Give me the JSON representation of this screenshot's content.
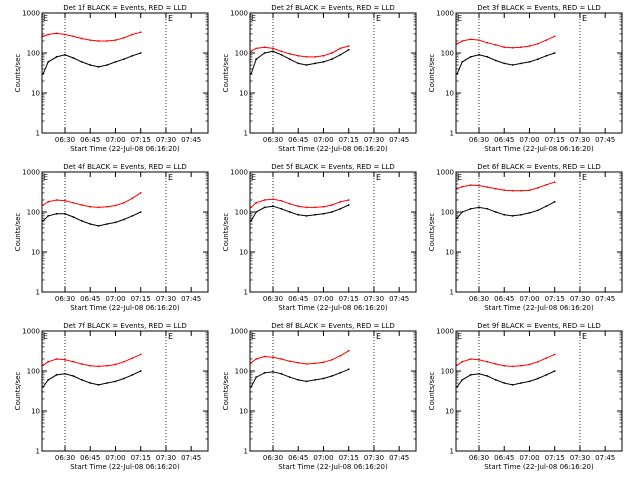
{
  "common": {
    "ylabel": "Counts/sec",
    "xlabel": "Start Time (22-Jul-08 06:16:20)",
    "y_ticks": [
      "1",
      "10",
      "100",
      "1000"
    ],
    "x_ticks": [
      "06:30",
      "06:45",
      "07:00",
      "07:15",
      "07:30",
      "07:45"
    ],
    "corner_mark_left": "E",
    "corner_mark_right": "E",
    "events_color": "#000000",
    "lld_color": "#ff0000"
  },
  "chart_data": [
    {
      "type": "line",
      "title": "Det 1f BLACK = Events, RED = LLD",
      "ylim": [
        1,
        1000
      ],
      "y_scale": "log",
      "xlim": [
        "06:16:20",
        "07:55"
      ],
      "dotted_lines": [
        "06:30",
        "07:30"
      ],
      "series": [
        {
          "name": "Events",
          "x": [
            "06:17",
            "06:20",
            "06:25",
            "06:30",
            "06:35",
            "06:40",
            "06:45",
            "06:50",
            "06:55",
            "07:00",
            "07:05",
            "07:10",
            "07:15"
          ],
          "values": [
            30,
            60,
            80,
            90,
            75,
            60,
            50,
            45,
            50,
            60,
            70,
            85,
            100
          ]
        },
        {
          "name": "LLD",
          "x": [
            "06:17",
            "06:20",
            "06:25",
            "06:30",
            "06:35",
            "06:40",
            "06:45",
            "06:50",
            "06:55",
            "07:00",
            "07:05",
            "07:10",
            "07:15"
          ],
          "values": [
            260,
            290,
            310,
            290,
            260,
            230,
            210,
            200,
            200,
            210,
            240,
            290,
            330
          ]
        }
      ]
    },
    {
      "type": "line",
      "title": "Det 2f BLACK = Events, RED = LLD",
      "ylim": [
        1,
        1000
      ],
      "y_scale": "log",
      "xlim": [
        "06:16:20",
        "07:55"
      ],
      "dotted_lines": [
        "06:30",
        "07:30"
      ],
      "series": [
        {
          "name": "Events",
          "x": [
            "06:17",
            "06:20",
            "06:25",
            "06:30",
            "06:35",
            "06:40",
            "06:45",
            "06:50",
            "06:55",
            "07:00",
            "07:05",
            "07:10",
            "07:15"
          ],
          "values": [
            30,
            70,
            100,
            110,
            90,
            70,
            55,
            50,
            55,
            60,
            70,
            90,
            120
          ]
        },
        {
          "name": "LLD",
          "x": [
            "06:17",
            "06:20",
            "06:25",
            "06:30",
            "06:35",
            "06:40",
            "06:45",
            "06:50",
            "06:55",
            "07:00",
            "07:05",
            "07:10",
            "07:15"
          ],
          "values": [
            110,
            130,
            140,
            130,
            110,
            95,
            85,
            80,
            80,
            85,
            100,
            130,
            150
          ]
        }
      ]
    },
    {
      "type": "line",
      "title": "Det 3f BLACK = Events, RED = LLD",
      "ylim": [
        1,
        1000
      ],
      "y_scale": "log",
      "xlim": [
        "06:16:20",
        "07:55"
      ],
      "dotted_lines": [
        "06:30",
        "07:30"
      ],
      "series": [
        {
          "name": "Events",
          "x": [
            "06:17",
            "06:20",
            "06:25",
            "06:30",
            "06:35",
            "06:40",
            "06:45",
            "06:50",
            "06:55",
            "07:00",
            "07:05",
            "07:10",
            "07:15"
          ],
          "values": [
            30,
            60,
            80,
            90,
            80,
            65,
            55,
            50,
            55,
            60,
            70,
            85,
            100
          ]
        },
        {
          "name": "LLD",
          "x": [
            "06:17",
            "06:20",
            "06:25",
            "06:30",
            "06:35",
            "06:40",
            "06:45",
            "06:50",
            "06:55",
            "07:00",
            "07:05",
            "07:10",
            "07:15"
          ],
          "values": [
            170,
            200,
            220,
            210,
            180,
            160,
            140,
            135,
            140,
            150,
            170,
            210,
            260
          ]
        }
      ]
    },
    {
      "type": "line",
      "title": "Det 4f BLACK = Events, RED = LLD",
      "ylim": [
        1,
        1000
      ],
      "y_scale": "log",
      "xlim": [
        "06:16:20",
        "07:55"
      ],
      "dotted_lines": [
        "06:30",
        "07:30"
      ],
      "series": [
        {
          "name": "Events",
          "x": [
            "06:17",
            "06:20",
            "06:25",
            "06:30",
            "06:35",
            "06:40",
            "06:45",
            "06:50",
            "06:55",
            "07:00",
            "07:05",
            "07:10",
            "07:15"
          ],
          "values": [
            60,
            80,
            90,
            90,
            75,
            60,
            50,
            45,
            50,
            55,
            65,
            80,
            100
          ]
        },
        {
          "name": "LLD",
          "x": [
            "06:17",
            "06:20",
            "06:25",
            "06:30",
            "06:35",
            "06:40",
            "06:45",
            "06:50",
            "06:55",
            "07:00",
            "07:05",
            "07:10",
            "07:15"
          ],
          "values": [
            150,
            180,
            200,
            190,
            170,
            150,
            135,
            130,
            135,
            145,
            170,
            220,
            300
          ]
        }
      ]
    },
    {
      "type": "line",
      "title": "Det 5f BLACK = Events, RED = LLD",
      "ylim": [
        1,
        1000
      ],
      "y_scale": "log",
      "xlim": [
        "06:16:20",
        "07:55"
      ],
      "dotted_lines": [
        "06:30",
        "07:30"
      ],
      "series": [
        {
          "name": "Events",
          "x": [
            "06:17",
            "06:20",
            "06:25",
            "06:30",
            "06:35",
            "06:40",
            "06:45",
            "06:50",
            "06:55",
            "07:00",
            "07:05",
            "07:10",
            "07:15"
          ],
          "values": [
            60,
            100,
            130,
            140,
            120,
            100,
            85,
            80,
            85,
            90,
            100,
            120,
            150
          ]
        },
        {
          "name": "LLD",
          "x": [
            "06:17",
            "06:20",
            "06:25",
            "06:30",
            "06:35",
            "06:40",
            "06:45",
            "06:50",
            "06:55",
            "07:00",
            "07:05",
            "07:10",
            "07:15"
          ],
          "values": [
            130,
            170,
            200,
            210,
            190,
            160,
            140,
            130,
            130,
            135,
            150,
            180,
            200
          ]
        }
      ]
    },
    {
      "type": "line",
      "title": "Det 6f BLACK = Events, RED = LLD",
      "ylim": [
        1,
        1000
      ],
      "y_scale": "log",
      "xlim": [
        "06:16:20",
        "07:55"
      ],
      "dotted_lines": [
        "06:30",
        "07:30"
      ],
      "series": [
        {
          "name": "Events",
          "x": [
            "06:17",
            "06:20",
            "06:25",
            "06:30",
            "06:35",
            "06:40",
            "06:45",
            "06:50",
            "06:55",
            "07:00",
            "07:05",
            "07:10",
            "07:15"
          ],
          "values": [
            70,
            100,
            120,
            130,
            120,
            100,
            85,
            80,
            85,
            95,
            110,
            140,
            180
          ]
        },
        {
          "name": "LLD",
          "x": [
            "06:17",
            "06:20",
            "06:25",
            "06:30",
            "06:35",
            "06:40",
            "06:45",
            "06:50",
            "06:55",
            "07:00",
            "07:05",
            "07:10",
            "07:15"
          ],
          "values": [
            380,
            430,
            470,
            460,
            420,
            380,
            350,
            340,
            340,
            350,
            400,
            480,
            560
          ]
        }
      ]
    },
    {
      "type": "line",
      "title": "Det 7f BLACK = Events, RED = LLD",
      "ylim": [
        1,
        1000
      ],
      "y_scale": "log",
      "xlim": [
        "06:16:20",
        "07:55"
      ],
      "dotted_lines": [
        "06:30",
        "07:30"
      ],
      "series": [
        {
          "name": "Events",
          "x": [
            "06:17",
            "06:20",
            "06:25",
            "06:30",
            "06:35",
            "06:40",
            "06:45",
            "06:50",
            "06:55",
            "07:00",
            "07:05",
            "07:10",
            "07:15"
          ],
          "values": [
            40,
            60,
            80,
            85,
            75,
            60,
            50,
            45,
            50,
            55,
            65,
            80,
            100
          ]
        },
        {
          "name": "LLD",
          "x": [
            "06:17",
            "06:20",
            "06:25",
            "06:30",
            "06:35",
            "06:40",
            "06:45",
            "06:50",
            "06:55",
            "07:00",
            "07:05",
            "07:10",
            "07:15"
          ],
          "values": [
            140,
            170,
            200,
            190,
            170,
            150,
            135,
            130,
            135,
            145,
            170,
            210,
            260
          ]
        }
      ]
    },
    {
      "type": "line",
      "title": "Det 8f BLACK = Events, RED = LLD",
      "ylim": [
        1,
        1000
      ],
      "y_scale": "log",
      "xlim": [
        "06:16:20",
        "07:55"
      ],
      "dotted_lines": [
        "06:30",
        "07:30"
      ],
      "series": [
        {
          "name": "Events",
          "x": [
            "06:17",
            "06:20",
            "06:25",
            "06:30",
            "06:35",
            "06:40",
            "06:45",
            "06:50",
            "06:55",
            "07:00",
            "07:05",
            "07:10",
            "07:15"
          ],
          "values": [
            40,
            70,
            90,
            95,
            85,
            70,
            60,
            55,
            60,
            65,
            75,
            90,
            110
          ]
        },
        {
          "name": "LLD",
          "x": [
            "06:17",
            "06:20",
            "06:25",
            "06:30",
            "06:35",
            "06:40",
            "06:45",
            "06:50",
            "06:55",
            "07:00",
            "07:05",
            "07:10",
            "07:15"
          ],
          "values": [
            160,
            200,
            230,
            220,
            200,
            175,
            160,
            150,
            155,
            165,
            190,
            240,
            320
          ]
        }
      ]
    },
    {
      "type": "line",
      "title": "Det 9f BLACK = Events, RED = LLD",
      "ylim": [
        1,
        1000
      ],
      "y_scale": "log",
      "xlim": [
        "06:16:20",
        "07:55"
      ],
      "dotted_lines": [
        "06:30",
        "07:30"
      ],
      "series": [
        {
          "name": "Events",
          "x": [
            "06:17",
            "06:20",
            "06:25",
            "06:30",
            "06:35",
            "06:40",
            "06:45",
            "06:50",
            "06:55",
            "07:00",
            "07:05",
            "07:10",
            "07:15"
          ],
          "values": [
            40,
            60,
            80,
            85,
            75,
            60,
            50,
            45,
            50,
            55,
            65,
            80,
            100
          ]
        },
        {
          "name": "LLD",
          "x": [
            "06:17",
            "06:20",
            "06:25",
            "06:30",
            "06:35",
            "06:40",
            "06:45",
            "06:50",
            "06:55",
            "07:00",
            "07:05",
            "07:10",
            "07:15"
          ],
          "values": [
            140,
            170,
            200,
            190,
            170,
            150,
            135,
            130,
            135,
            145,
            170,
            210,
            260
          ]
        }
      ]
    }
  ]
}
